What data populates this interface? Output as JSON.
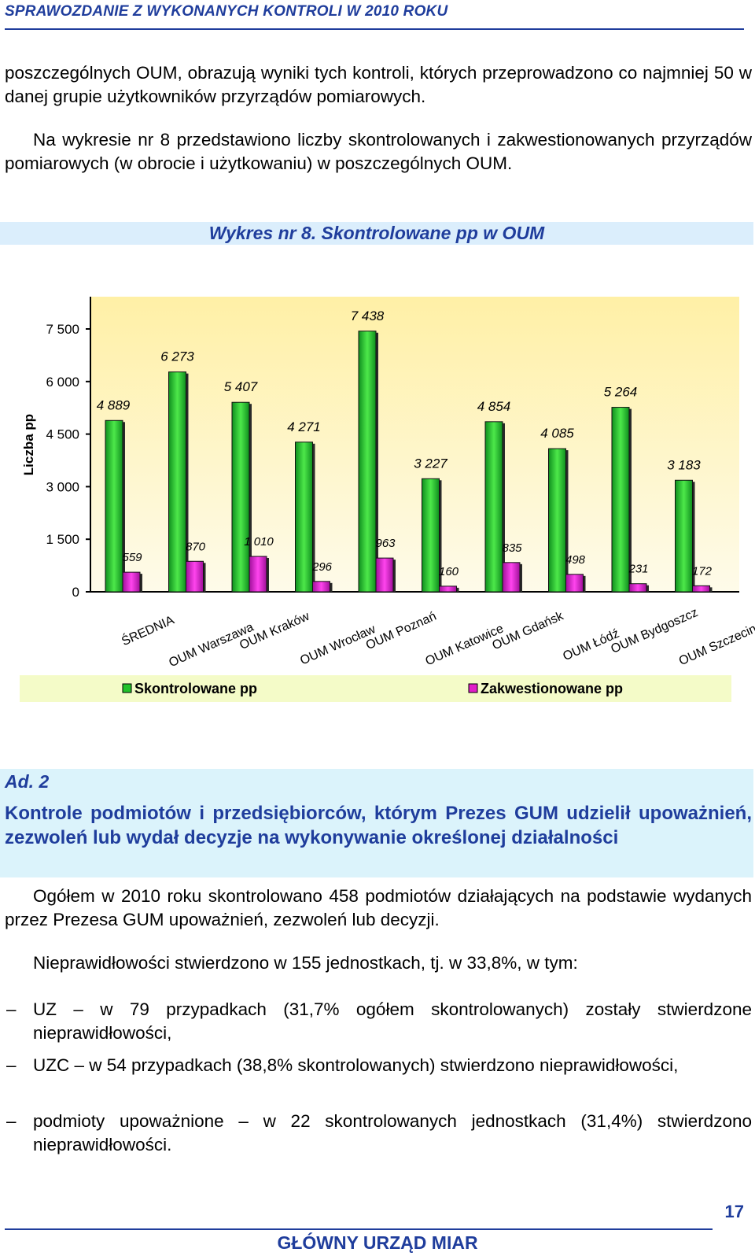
{
  "header": {
    "title": "SPRAWOZDANIE Z WYKONANYCH KONTROLI W 2010 ROKU"
  },
  "intro": {
    "p1": "poszczególnych OUM, obrazują wyniki tych kontroli, których przeprowadzono co najmniej 50 w danej grupie użytkowników przyrządów pomiarowych.",
    "p2": "Na wykresie nr 8 przedstawiono liczby skontrolowanych i zakwestionowanych przyrządów pomiarowych (w obrocie i użytkowaniu) w poszczególnych OUM."
  },
  "chart_data": {
    "type": "bar",
    "title": "Wykres nr 8. Skontrolowane  pp w  OUM",
    "ylabel": "Liczba pp",
    "ylim": [
      0,
      8000
    ],
    "yticks": [
      0,
      1500,
      3000,
      4500,
      6000,
      7500
    ],
    "ytick_labels": [
      "0",
      "1 500",
      "3 000",
      "4 500",
      "6 000",
      "7 500"
    ],
    "categories": [
      "ŚREDNIA",
      "OUM Warszawa",
      "OUM Kraków",
      "OUM Wrocław",
      "OUM Poznań",
      "OUM Katowice",
      "OUM Gdańsk",
      "OUM Łódź",
      "OUM Bydgoszcz",
      "OUM Szczecin"
    ],
    "series": [
      {
        "name": "Skontrolowane pp",
        "color": "#22c22c",
        "values": [
          4889,
          6273,
          5407,
          4271,
          7438,
          3227,
          4854,
          4085,
          5264,
          3183
        ],
        "labels": [
          "4 889",
          "6 273",
          "5 407",
          "4 271",
          "7 438",
          "3 227",
          "4 854",
          "4 085",
          "5 264",
          "3 183"
        ]
      },
      {
        "name": "Zakwestionowane pp",
        "color": "#e11ec8",
        "values": [
          559,
          870,
          1010,
          296,
          963,
          160,
          835,
          498,
          231,
          172
        ],
        "labels": [
          "559",
          "870",
          "1 010",
          "296",
          "963",
          "160",
          "835",
          "498",
          "231",
          "172"
        ]
      }
    ],
    "legend": "bottom",
    "grid": false
  },
  "section": {
    "label": "Ad. 2",
    "heading": "Kontrole podmiotów i przedsiębiorców, którym Prezes GUM udzielił upoważnień, zezwoleń lub wydał decyzje na wykonywanie określonej działalności"
  },
  "body": {
    "p1": "Ogółem w 2010 roku skontrolowano 458 podmiotów działających na podstawie wydanych przez Prezesa GUM upoważnień, zezwoleń lub decyzji.",
    "p2": "Nieprawidłowości stwierdzono w 155 jednostkach, tj. w 33,8%, w tym:",
    "bullets": [
      {
        "dash": "–",
        "text": "UZ – w 79 przypadkach (31,7% ogółem skontrolowanych) zostały stwierdzone nieprawidłowości,"
      },
      {
        "dash": "–",
        "text": "UZC – w 54 przypadkach (38,8% skontrolowanych) stwierdzono nieprawidłowości,"
      },
      {
        "dash": "–",
        "text": "podmioty upoważnione – w 22 skontrolowanych jednostkach (31,4%) stwierdzono nieprawidłowości."
      }
    ]
  },
  "footer": {
    "page_number": "17",
    "org": "GŁÓWNY URZĄD MIAR"
  }
}
